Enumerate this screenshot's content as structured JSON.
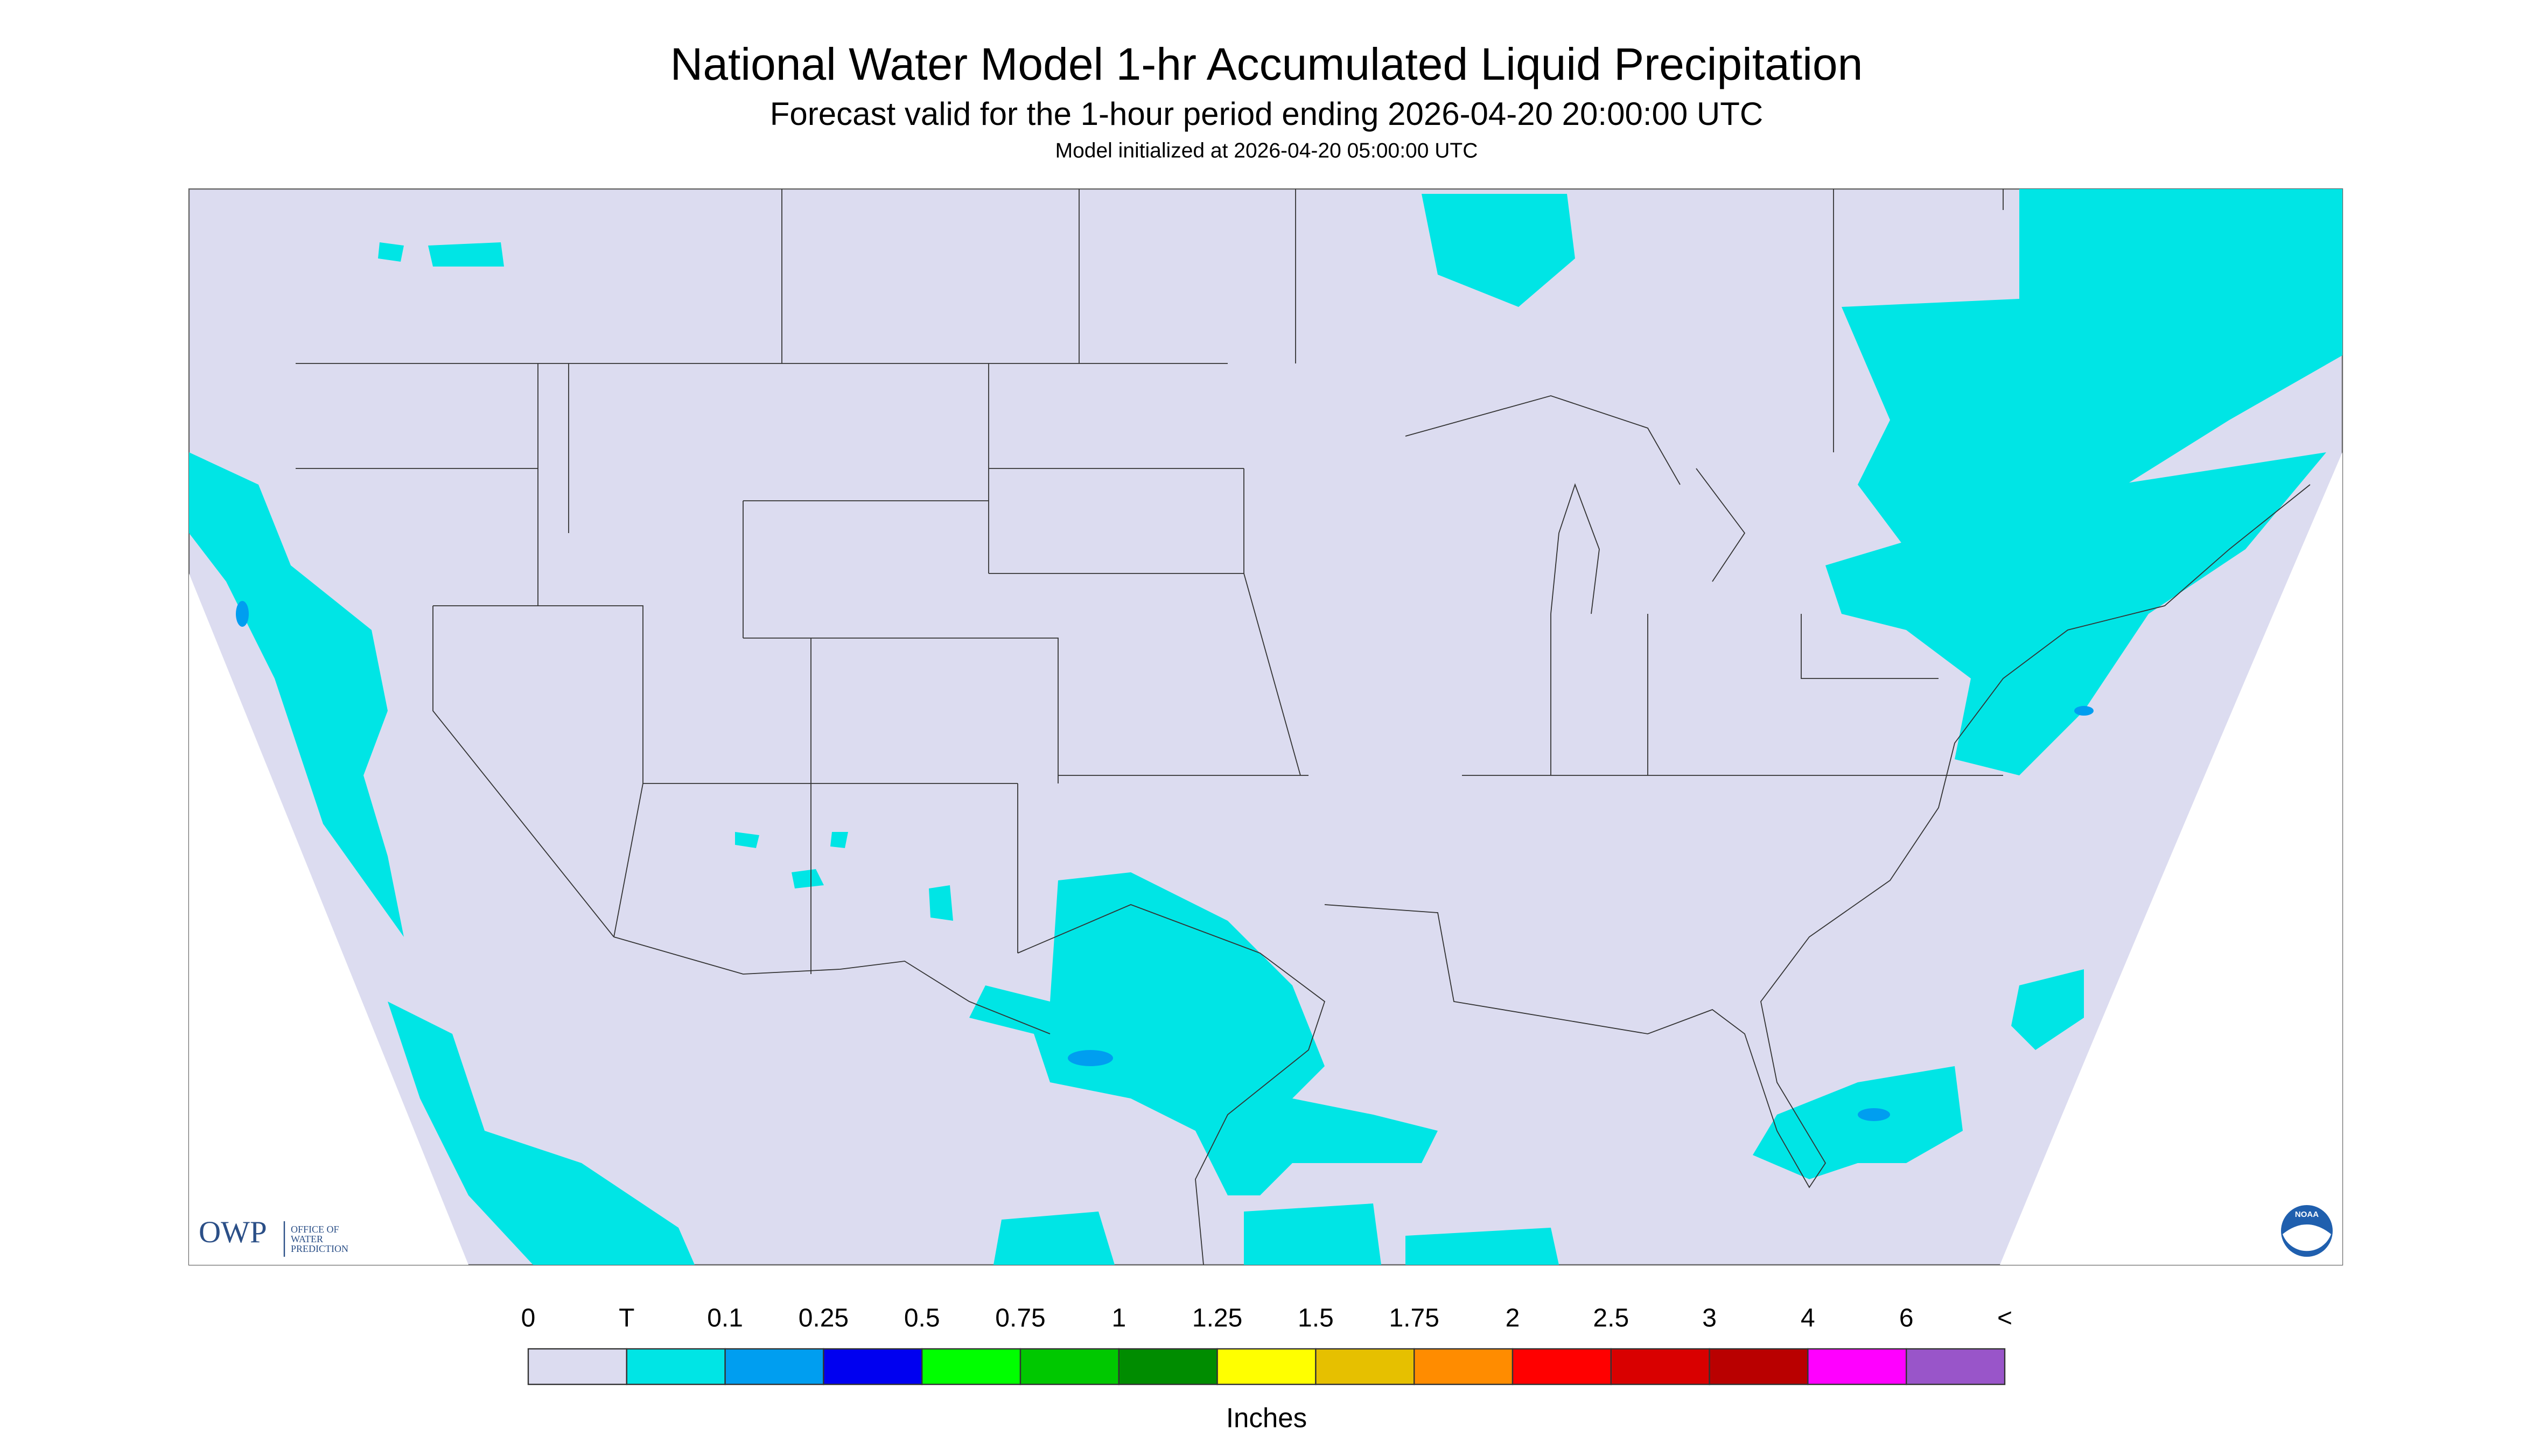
{
  "title": "National Water Model 1-hr Accumulated Liquid Precipitation",
  "subtitle": "Forecast valid for the 1-hour period ending 2026-04-20 20:00:00 UTC",
  "init": "Model initialized at 2026-04-20 05:00:00 UTC",
  "legend": {
    "labels": [
      "0",
      "T",
      "0.1",
      "0.25",
      "0.5",
      "0.75",
      "1",
      "1.25",
      "1.5",
      "1.75",
      "2",
      "2.5",
      "3",
      "4",
      "6",
      "<"
    ],
    "colors": [
      "#dcdcf0",
      "#00e5e5",
      "#009ef0",
      "#0000f0",
      "#00ff00",
      "#00c800",
      "#008c00",
      "#ffff00",
      "#e6c000",
      "#ff8c00",
      "#ff0000",
      "#d90000",
      "#b90000",
      "#ff00ff",
      "#9955c9"
    ],
    "unit": "Inches"
  },
  "logos": {
    "owp": "OWP",
    "owp_name": [
      "OFFICE OF",
      "WATER",
      "PREDICTION"
    ],
    "noaa": "NOAA"
  }
}
